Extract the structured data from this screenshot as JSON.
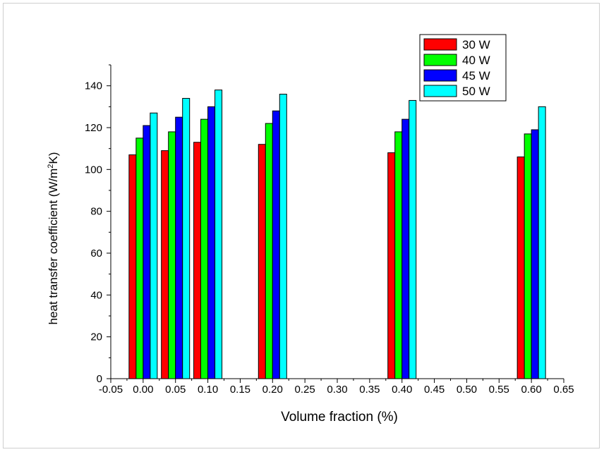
{
  "chart_data": {
    "type": "bar",
    "xlabel": "Volume fraction (%)",
    "ylabel": "heat transfer coefficient (W/m2K)",
    "ylabel_parts": {
      "before": "heat transfer coefficient (W/m",
      "sup": "2",
      "after": "K)"
    },
    "xlim": [
      -0.05,
      0.65
    ],
    "ylim": [
      0,
      150
    ],
    "x_ticks": [
      -0.05,
      0.0,
      0.05,
      0.1,
      0.15,
      0.2,
      0.25,
      0.3,
      0.35,
      0.4,
      0.45,
      0.5,
      0.55,
      0.6,
      0.65
    ],
    "x_tick_labels": [
      "-0.05",
      "0.00",
      "0.05",
      "0.10",
      "0.15",
      "0.20",
      "0.25",
      "0.30",
      "0.35",
      "0.40",
      "0.45",
      "0.50",
      "0.55",
      "0.60",
      "0.65"
    ],
    "y_ticks": [
      0,
      20,
      40,
      60,
      80,
      100,
      120,
      140
    ],
    "y_tick_labels": [
      "0",
      "20",
      "40",
      "60",
      "80",
      "100",
      "120",
      "140"
    ],
    "x": [
      0.0,
      0.05,
      0.1,
      0.2,
      0.4,
      0.6
    ],
    "series": [
      {
        "name": "30 W",
        "color": "#ff0000",
        "values": [
          107,
          109,
          113,
          112,
          108,
          106
        ]
      },
      {
        "name": "40 W",
        "color": "#00ff00",
        "values": [
          115,
          118,
          124,
          122,
          118,
          117
        ]
      },
      {
        "name": "45 W",
        "color": "#0000ff",
        "values": [
          121,
          125,
          130,
          128,
          124,
          119
        ]
      },
      {
        "name": "50 W",
        "color": "#00ffff",
        "values": [
          127,
          134,
          138,
          136,
          133,
          130
        ]
      }
    ],
    "legend_position": "top-right",
    "grid": false
  }
}
